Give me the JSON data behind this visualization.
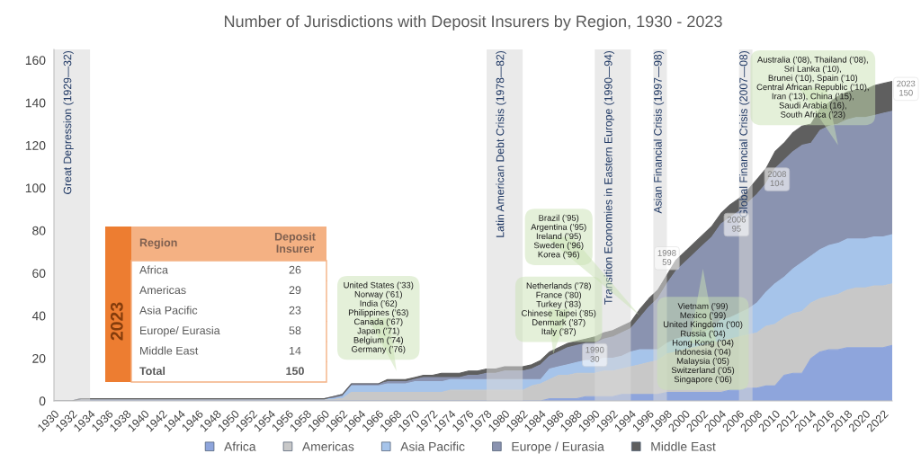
{
  "chart_data": {
    "type": "area",
    "stacked": true,
    "title": "Number of Jurisdictions with Deposit Insurers by Region, 1930 - 2023",
    "x": [
      1930,
      1931,
      1932,
      1933,
      1934,
      1935,
      1936,
      1937,
      1938,
      1939,
      1940,
      1941,
      1942,
      1943,
      1944,
      1945,
      1946,
      1947,
      1948,
      1949,
      1950,
      1951,
      1952,
      1953,
      1954,
      1955,
      1956,
      1957,
      1958,
      1959,
      1960,
      1961,
      1962,
      1963,
      1964,
      1965,
      1966,
      1967,
      1968,
      1969,
      1970,
      1971,
      1972,
      1973,
      1974,
      1975,
      1976,
      1977,
      1978,
      1979,
      1980,
      1981,
      1982,
      1983,
      1984,
      1985,
      1986,
      1987,
      1988,
      1989,
      1990,
      1991,
      1992,
      1993,
      1994,
      1995,
      1996,
      1997,
      1998,
      1999,
      2000,
      2001,
      2002,
      2003,
      2004,
      2005,
      2006,
      2007,
      2008,
      2009,
      2010,
      2011,
      2012,
      2013,
      2014,
      2015,
      2016,
      2017,
      2018,
      2019,
      2020,
      2021,
      2022,
      2023
    ],
    "series": [
      {
        "name": "Africa",
        "color": "#8ea5dc",
        "values": [
          0,
          0,
          0,
          0,
          0,
          0,
          0,
          0,
          0,
          0,
          0,
          0,
          0,
          0,
          0,
          0,
          0,
          0,
          0,
          0,
          0,
          0,
          0,
          0,
          0,
          0,
          0,
          0,
          0,
          0,
          0,
          0,
          0,
          0,
          0,
          0,
          0,
          0,
          0,
          0,
          0,
          0,
          0,
          0,
          0,
          0,
          0,
          0,
          0,
          0,
          0,
          0,
          0,
          0,
          0,
          1,
          1,
          1,
          1,
          2,
          2,
          2,
          2,
          3,
          3,
          3,
          3,
          3,
          4,
          4,
          4,
          4,
          4,
          4,
          4,
          5,
          5,
          6,
          6,
          7,
          7,
          12,
          13,
          13,
          20,
          23,
          24,
          24,
          25,
          25,
          25,
          25,
          25,
          26
        ]
      },
      {
        "name": "Americas",
        "color": "#c8c8c8",
        "values": [
          0,
          0,
          0,
          1,
          1,
          1,
          1,
          1,
          1,
          1,
          1,
          1,
          1,
          1,
          1,
          1,
          1,
          1,
          1,
          1,
          1,
          1,
          1,
          1,
          1,
          1,
          1,
          1,
          1,
          1,
          1,
          1,
          1,
          4,
          4,
          4,
          4,
          4,
          4,
          4,
          4,
          4,
          4,
          4,
          5,
          5,
          5,
          5,
          5,
          5,
          5,
          5,
          5,
          7,
          8,
          9,
          11,
          11,
          12,
          11,
          11,
          12,
          12,
          12,
          13,
          14,
          15,
          16,
          18,
          19,
          20,
          21,
          22,
          23,
          24,
          24,
          25,
          25,
          26,
          28,
          29,
          27,
          28,
          29,
          26,
          25,
          25,
          26,
          27,
          28,
          28,
          29,
          29,
          29
        ]
      },
      {
        "name": "Asia Pacific",
        "color": "#a6c4ea",
        "values": [
          0,
          0,
          0,
          0,
          0,
          0,
          0,
          0,
          0,
          0,
          0,
          0,
          0,
          0,
          0,
          0,
          0,
          0,
          0,
          0,
          0,
          0,
          0,
          0,
          0,
          0,
          0,
          0,
          0,
          0,
          0,
          0,
          1,
          3,
          3,
          3,
          3,
          4,
          4,
          4,
          5,
          5,
          5,
          5,
          5,
          5,
          5,
          5,
          5,
          5,
          5,
          5,
          5,
          3,
          2,
          5,
          4,
          5,
          5,
          6,
          6,
          6,
          6,
          6,
          7,
          7,
          6,
          5,
          5,
          6,
          6,
          6,
          6,
          7,
          10,
          10,
          11,
          12,
          14,
          16,
          19,
          19,
          21,
          23,
          22,
          23,
          24,
          24,
          24,
          23,
          23,
          23,
          23,
          23
        ]
      },
      {
        "name": "Europe / Eurasia",
        "color": "#8a93b0",
        "values": [
          0,
          0,
          0,
          0,
          0,
          0,
          0,
          0,
          0,
          0,
          0,
          0,
          0,
          0,
          0,
          0,
          0,
          0,
          0,
          0,
          0,
          0,
          0,
          0,
          0,
          0,
          0,
          0,
          0,
          0,
          0,
          1,
          1,
          1,
          1,
          1,
          1,
          1,
          1,
          1,
          1,
          2,
          2,
          2,
          1,
          1,
          2,
          2,
          3,
          3,
          4,
          4,
          4,
          5,
          7,
          6,
          7,
          8,
          8,
          8,
          8,
          9,
          10,
          11,
          11,
          15,
          20,
          24,
          28,
          32,
          35,
          38,
          41,
          43,
          45,
          47,
          48,
          50,
          51,
          51,
          54,
          55,
          55,
          55,
          53,
          56,
          56,
          56,
          56,
          57,
          57,
          57,
          58,
          58
        ]
      },
      {
        "name": "Middle East",
        "color": "#5f5f5f",
        "values": [
          0,
          0,
          0,
          0,
          0,
          0,
          0,
          0,
          0,
          0,
          0,
          0,
          0,
          0,
          0,
          0,
          0,
          0,
          0,
          0,
          0,
          0,
          0,
          0,
          0,
          0,
          0,
          0,
          0,
          0,
          0,
          0,
          0,
          0,
          0,
          0,
          0,
          1,
          1,
          1,
          1,
          1,
          1,
          2,
          2,
          2,
          2,
          2,
          2,
          2,
          2,
          2,
          2,
          2,
          2,
          2,
          2,
          2,
          2,
          2,
          3,
          3,
          3,
          3,
          3,
          4,
          4,
          4,
          4,
          5,
          5,
          5,
          5,
          5,
          5,
          6,
          6,
          6,
          7,
          7,
          8,
          8,
          9,
          9,
          9,
          10,
          11,
          13,
          13,
          13,
          13,
          14,
          14,
          14
        ]
      }
    ],
    "xlim": [
      1930,
      2023
    ],
    "xticks": [
      1930,
      1932,
      1934,
      1936,
      1938,
      1940,
      1942,
      1944,
      1946,
      1948,
      1950,
      1952,
      1954,
      1956,
      1958,
      1960,
      1962,
      1964,
      1966,
      1968,
      1970,
      1972,
      1974,
      1976,
      1978,
      1980,
      1982,
      1984,
      1986,
      1988,
      1990,
      1992,
      1994,
      1996,
      1998,
      2000,
      2002,
      2004,
      2006,
      2008,
      2010,
      2012,
      2014,
      2016,
      2018,
      2020,
      2022
    ],
    "ylim": [
      0,
      165
    ],
    "yticks": [
      0,
      20,
      40,
      60,
      80,
      100,
      120,
      140,
      160
    ],
    "grid": false,
    "legend": "bottom",
    "bands": [
      {
        "axis": "x",
        "from": 1930,
        "to": 1934,
        "label": "Great Depression (1929—32)",
        "color": "#d9d9d9"
      },
      {
        "axis": "x",
        "from": 1978,
        "to": 1982,
        "label": "Latin American Debt Crisis (1978—82)",
        "color": "#d9d9d9"
      },
      {
        "axis": "x",
        "from": 1990,
        "to": 1994,
        "label": "Transition Economies in Eastern Europe (1990—94)",
        "color": "#d9d9d9"
      },
      {
        "axis": "x",
        "from": 1996.5,
        "to": 1998,
        "label": "Asian Financial Crisis (1997—98)",
        "color": "#d9d9d9"
      },
      {
        "axis": "x",
        "from": 2006,
        "to": 2007.5,
        "label": "Global Financial Crisis (2007—08)",
        "color": "#d9d9d9"
      }
    ],
    "annotations": [
      "United States (’33)\nNorway (’61)\nIndia (’62)\nPhilippines (’63)\nCanada (’67)\nJapan (’71)\nBelgium (’74)\nGermany (’76)",
      "Netherlands (’78)\nFrance (’80)\nTurkey (’83)\nChinese Taipei (’85)\nDenmark (’87)\nItaly (’87)",
      "Brazil (’95)\nArgentina (’95)\nIreland (’95)\nSweden (’96)\nKorea (’96)",
      "Vietnam (’99)\nMexico (’99)\nUnited Kingdom (’00)\nRussia (’04)\nHong Kong (’04)\nIndonesia (’04)\nMalaysia (’05)\nSwitzerland (’05)\nSingapore (’06)",
      "Australia (’08), Thailand (’08),\nSri Lanka (’10),\nBrunei (’10), Spain (’10)\nCentral African Republic (’10),\nIran (’13), China (’15),\nSaudi Arabia (16),\nSouth Africa (’23)",
      {
        "text": "1990\n30",
        "x": 1990,
        "y": 30
      },
      {
        "text": "1998\n59",
        "x": 1998,
        "y": 59
      },
      {
        "text": "2006\n95",
        "x": 2006,
        "y": 95
      },
      {
        "text": "2008\n104",
        "x": 2008,
        "y": 104
      },
      {
        "text": "2023\n150",
        "x": 2023,
        "y": 150
      },
      "2023",
      "Region",
      "Deposit\nInsurer",
      "Africa",
      "26",
      "Americas",
      "29",
      "Asia Pacific",
      "23",
      "Europe/ Eurasia",
      "58",
      "Middle East",
      "14",
      "Total",
      "150"
    ]
  }
}
